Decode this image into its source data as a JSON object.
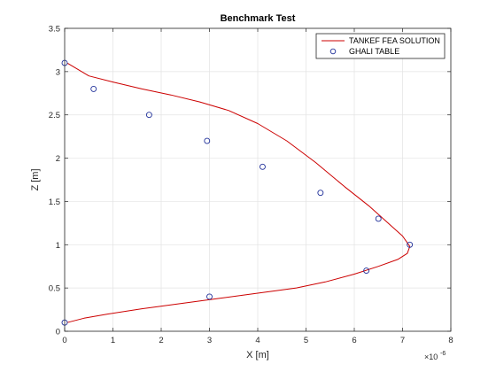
{
  "chart_data": {
    "type": "line",
    "title": "Benchmark Test",
    "xlabel": "X [m]",
    "ylabel": "Z [m]",
    "x_exponent_base": "×10",
    "x_exponent_power": "-6",
    "xlim": [
      0,
      8
    ],
    "ylim": [
      0,
      3.5
    ],
    "xticks": [
      0,
      1,
      2,
      3,
      4,
      5,
      6,
      7,
      8
    ],
    "xtick_labels": [
      "0",
      "1",
      "2",
      "3",
      "4",
      "5",
      "6",
      "7",
      "8"
    ],
    "yticks": [
      0,
      0.5,
      1,
      1.5,
      2,
      2.5,
      3,
      3.5
    ],
    "ytick_labels": [
      "0",
      "0.5",
      "1",
      "1.5",
      "2",
      "2.5",
      "3",
      "3.5"
    ],
    "grid": true,
    "legend_position": "top-right",
    "series": [
      {
        "name": "TANKEF FEA SOLUTION",
        "style": "line",
        "color": "#cc0000",
        "x": [
          0.05,
          0.5,
          1.0,
          1.6,
          2.2,
          2.8,
          3.4,
          4.0,
          4.6,
          5.2,
          5.8,
          6.3,
          6.7,
          7.0,
          7.15,
          7.1,
          6.9,
          6.5,
          6.0,
          5.4,
          4.8,
          4.0,
          3.2,
          2.4,
          1.6,
          0.9,
          0.4,
          0.05
        ],
        "y": [
          3.1,
          2.95,
          2.88,
          2.8,
          2.73,
          2.65,
          2.55,
          2.4,
          2.2,
          1.95,
          1.67,
          1.45,
          1.25,
          1.1,
          0.98,
          0.9,
          0.83,
          0.75,
          0.66,
          0.57,
          0.5,
          0.44,
          0.38,
          0.32,
          0.26,
          0.2,
          0.15,
          0.1
        ]
      },
      {
        "name": "GHALI TABLE",
        "style": "marker",
        "color": "#1f2f99",
        "x": [
          0.0,
          0.6,
          1.75,
          2.95,
          4.1,
          5.3,
          6.5,
          7.15,
          6.25,
          3.0,
          0.0
        ],
        "y": [
          3.1,
          2.8,
          2.5,
          2.2,
          1.9,
          1.6,
          1.3,
          1.0,
          0.7,
          0.4,
          0.1
        ]
      }
    ]
  }
}
